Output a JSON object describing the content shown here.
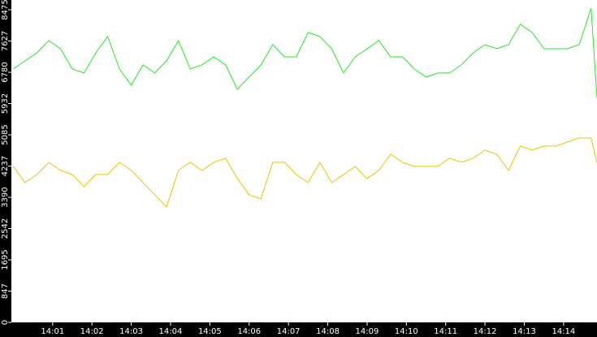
{
  "chart_data": {
    "type": "line",
    "x": [
      840.0,
      840.3,
      840.6,
      840.9,
      841.2,
      841.5,
      841.8,
      842.1,
      842.4,
      842.7,
      843.0,
      843.3,
      843.6,
      843.9,
      844.2,
      844.5,
      844.8,
      845.1,
      845.4,
      845.7,
      846.0,
      846.3,
      846.6,
      846.9,
      847.2,
      847.5,
      847.8,
      848.1,
      848.4,
      848.7,
      849.0,
      849.3,
      849.6,
      849.9,
      850.2,
      850.5,
      850.8,
      851.1,
      851.4,
      851.7,
      852.0,
      852.3,
      852.6,
      852.9,
      853.2,
      853.5,
      853.8,
      854.1,
      854.4,
      854.7,
      854.85
    ],
    "series": [
      {
        "color": "#22e822",
        "values": [
          6870,
          7090,
          7310,
          7640,
          7420,
          6870,
          6760,
          7310,
          7750,
          6870,
          6430,
          6980,
          6760,
          7090,
          7640,
          6870,
          6980,
          7200,
          6980,
          6320,
          6650,
          6980,
          7530,
          7200,
          7200,
          7860,
          7750,
          7420,
          6760,
          7200,
          7420,
          7640,
          7200,
          7200,
          6870,
          6650,
          6760,
          6760,
          6980,
          7310,
          7530,
          7420,
          7530,
          8080,
          7860,
          7420,
          7420,
          7420,
          7530,
          8520,
          6100
        ]
      },
      {
        "color": "#f0c000",
        "values": [
          4230,
          3790,
          4010,
          4340,
          4120,
          4010,
          3680,
          4010,
          4010,
          4340,
          4120,
          3790,
          3460,
          3130,
          4120,
          4340,
          4120,
          4340,
          4450,
          3900,
          3460,
          3350,
          4340,
          4340,
          4010,
          3790,
          4340,
          3790,
          4010,
          4230,
          3900,
          4120,
          4560,
          4340,
          4230,
          4230,
          4230,
          4450,
          4340,
          4450,
          4670,
          4560,
          4120,
          4780,
          4670,
          4780,
          4780,
          4890,
          5000,
          5000,
          4340
        ]
      }
    ],
    "xlim": [
      839.95,
      854.85
    ],
    "xticks": [
      {
        "value": 841,
        "label": "14:01"
      },
      {
        "value": 842,
        "label": "14:02"
      },
      {
        "value": 843,
        "label": "14:03"
      },
      {
        "value": 844,
        "label": "14:04"
      },
      {
        "value": 845,
        "label": "14:05"
      },
      {
        "value": 846,
        "label": "14:06"
      },
      {
        "value": 847,
        "label": "14:07"
      },
      {
        "value": 848,
        "label": "14:08"
      },
      {
        "value": 849,
        "label": "14:09"
      },
      {
        "value": 850,
        "label": "14:10"
      },
      {
        "value": 851,
        "label": "14:11"
      },
      {
        "value": 852,
        "label": "14:12"
      },
      {
        "value": 853,
        "label": "14:13"
      },
      {
        "value": 854,
        "label": "14:14"
      }
    ],
    "ylim": [
      0,
      8740
    ],
    "yticks": [
      0,
      847,
      1695,
      2542,
      3390,
      4237,
      5085,
      5932,
      6780,
      7627,
      8475
    ]
  }
}
